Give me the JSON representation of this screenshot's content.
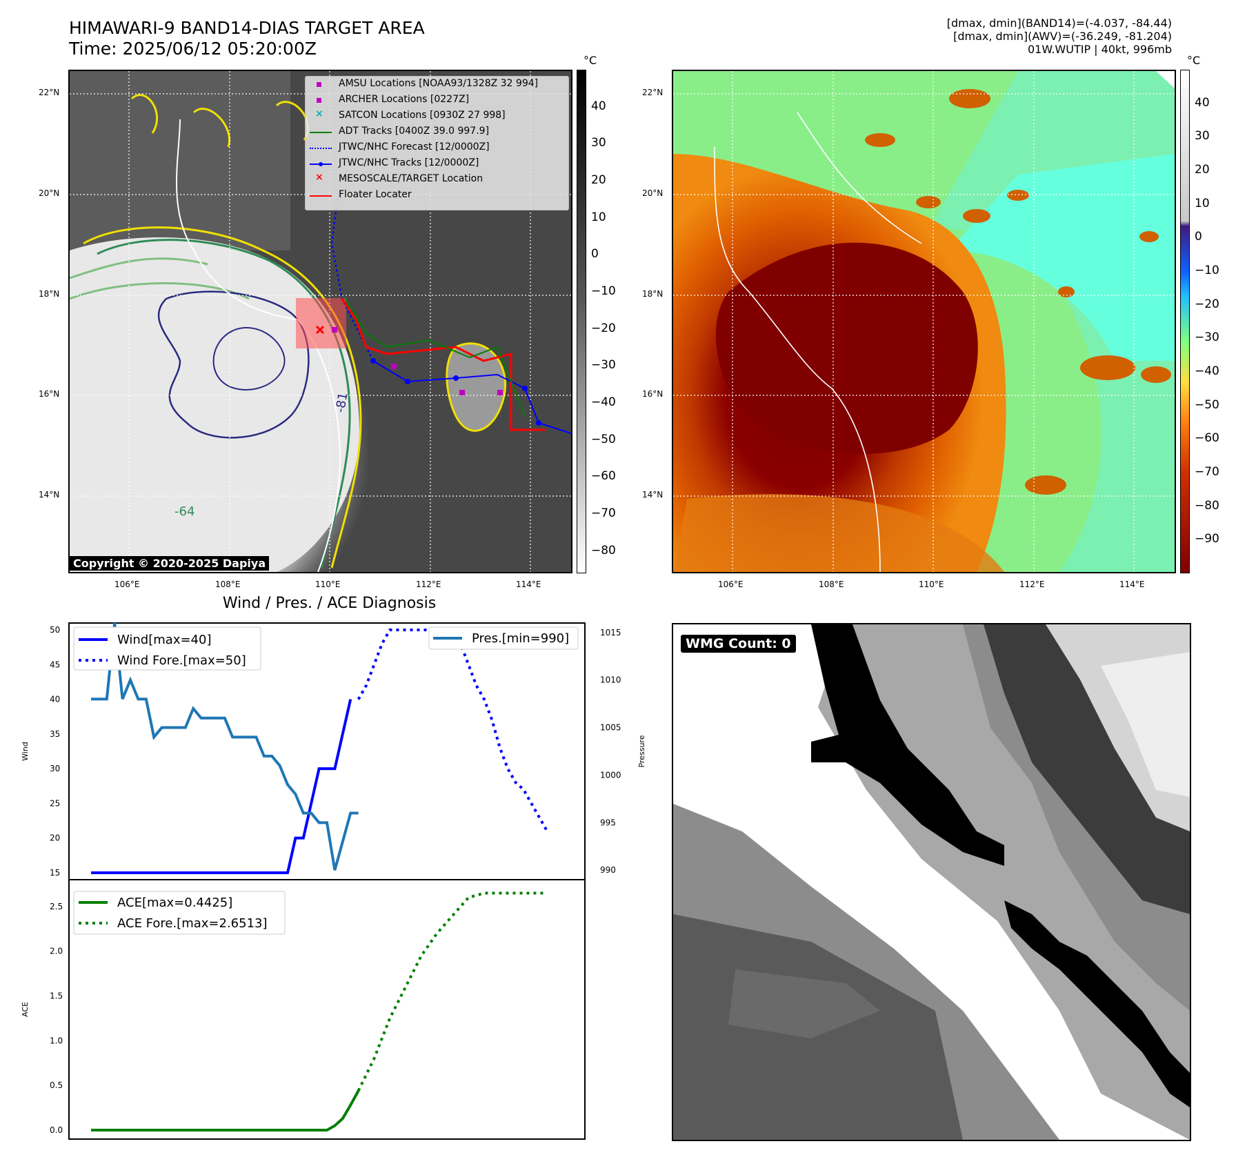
{
  "header": {
    "title_line1": "HIMAWARI-9 BAND14-DIAS TARGET AREA",
    "title_line2": "Time: 2025/06/12 05:20:00Z",
    "info_line1": "[dmax, dmin](BAND14)=(-4.037, -84.44)",
    "info_line2": "[dmax, dmin](AWV)=(-36.249, -81.204)",
    "info_line3": "01W.WUTIP | 40kt, 996mb"
  },
  "map_left": {
    "lat_labels": [
      "22°N",
      "20°N",
      "18°N",
      "16°N",
      "14°N"
    ],
    "lon_labels": [
      "106°E",
      "108°E",
      "110°E",
      "112°E",
      "114°E"
    ],
    "copyright": "Copyright © 2020-2025 Dapiya",
    "contour_labels": [
      "-81",
      "-64"
    ],
    "legend": [
      {
        "label": "AMSU Locations [NOAA93/1328Z 32 994]",
        "marker": "square",
        "color": "#c000c0"
      },
      {
        "label": "ARCHER Locations [0227Z]",
        "marker": "square",
        "color": "#c000c0"
      },
      {
        "label": "SATCON Locations [0930Z 27 998]",
        "marker": "x",
        "color": "#00b0b0"
      },
      {
        "label": "ADT Tracks [0400Z 39.0 997.9]",
        "marker": "line",
        "color": "#008000"
      },
      {
        "label": "JTWC/NHC Forecast [12/0000Z]",
        "marker": "dotted",
        "color": "#0000ff"
      },
      {
        "label": "JTWC/NHC Tracks [12/0000Z]",
        "marker": "line-dot",
        "color": "#0000ff"
      },
      {
        "label": "MESOSCALE/TARGET Location",
        "marker": "x",
        "color": "#ff0000"
      },
      {
        "label": "Floater Locater",
        "marker": "line",
        "color": "#ff0000"
      }
    ],
    "colorbar_unit": "°C",
    "colorbar_ticks": [
      "40",
      "30",
      "20",
      "10",
      "0",
      "−10",
      "−20",
      "−30",
      "−40",
      "−50",
      "−60",
      "−70",
      "−80"
    ]
  },
  "map_right": {
    "lat_labels": [
      "22°N",
      "20°N",
      "18°N",
      "16°N",
      "14°N"
    ],
    "lon_labels": [
      "106°E",
      "108°E",
      "110°E",
      "112°E",
      "114°E"
    ],
    "colorbar_unit": "°C",
    "colorbar_ticks": [
      "40",
      "30",
      "20",
      "10",
      "0",
      "−10",
      "−20",
      "−30",
      "−40",
      "−50",
      "−60",
      "−70",
      "−80",
      "−90"
    ]
  },
  "wmg": {
    "label": "WMG Count: 0"
  },
  "chart_data": [
    {
      "type": "line",
      "title": "Wind / Pres. / ACE Diagnosis",
      "ylabel": "Wind",
      "y2label": "Pressure",
      "ylim": [
        14,
        51
      ],
      "y2lim": [
        989,
        1016
      ],
      "yticks": [
        "50",
        "45",
        "40",
        "35",
        "30",
        "25",
        "20",
        "15"
      ],
      "y2ticks": [
        "1015",
        "1010",
        "1005",
        "1000",
        "995",
        "990"
      ],
      "series": [
        {
          "name": "Wind[max=40]",
          "color": "#0000ff",
          "style": "solid",
          "axis": "left",
          "x": [
            0,
            1,
            2,
            3,
            4,
            5,
            6,
            7,
            8,
            9,
            10,
            11,
            12,
            13,
            14,
            15,
            16,
            17,
            18,
            19,
            20,
            21,
            22,
            23,
            24,
            25,
            26,
            27,
            28,
            29,
            30,
            31,
            32,
            33
          ],
          "y": [
            15,
            15,
            15,
            15,
            15,
            15,
            15,
            15,
            15,
            15,
            15,
            15,
            15,
            15,
            15,
            15,
            15,
            15,
            15,
            15,
            15,
            15,
            15,
            15,
            15,
            15,
            20,
            20,
            25,
            30,
            30,
            30,
            35,
            40
          ]
        },
        {
          "name": "Wind Fore.[max=50]",
          "color": "#0000ff",
          "style": "dotted",
          "axis": "left",
          "x": [
            34,
            35,
            36,
            37,
            38,
            39,
            40,
            41,
            42,
            43,
            44,
            45,
            46,
            47,
            48,
            49,
            50,
            51,
            52,
            53,
            54,
            55,
            56,
            57,
            58
          ],
          "y": [
            40,
            42,
            45,
            48,
            50,
            50,
            50,
            50,
            50,
            50,
            50,
            50,
            50,
            48,
            45,
            42,
            40,
            37,
            33,
            30,
            28,
            27,
            25,
            23,
            21
          ]
        },
        {
          "name": "Pres.[min=990]",
          "color": "#1f77b4",
          "style": "solid",
          "axis": "right",
          "x": [
            0,
            1,
            2,
            3,
            4,
            5,
            6,
            7,
            8,
            9,
            10,
            11,
            12,
            13,
            14,
            15,
            16,
            17,
            18,
            19,
            20,
            21,
            22,
            23,
            24,
            25,
            26,
            27,
            28,
            29,
            30,
            31,
            32,
            33,
            34
          ],
          "y": [
            1008,
            1008,
            1008,
            1016,
            1008,
            1010,
            1008,
            1008,
            1004,
            1005,
            1005,
            1005,
            1005,
            1007,
            1006,
            1006,
            1006,
            1006,
            1004,
            1004,
            1004,
            1004,
            1002,
            1002,
            1001,
            999,
            998,
            996,
            996,
            995,
            995,
            990,
            993,
            996,
            996
          ]
        }
      ]
    },
    {
      "type": "line",
      "ylabel": "ACE",
      "ylim": [
        -0.1,
        2.8
      ],
      "yticks": [
        "2.5",
        "2.0",
        "1.5",
        "1.0",
        "0.5",
        "0.0"
      ],
      "series": [
        {
          "name": "ACE[max=0.4425]",
          "color": "#008000",
          "style": "solid",
          "x": [
            0,
            5,
            10,
            15,
            20,
            25,
            28,
            30,
            31,
            32,
            33,
            34
          ],
          "y": [
            0,
            0,
            0,
            0,
            0,
            0,
            0,
            0,
            0.05,
            0.13,
            0.28,
            0.44
          ]
        },
        {
          "name": "ACE Fore.[max=2.6513]",
          "color": "#008000",
          "style": "dotted",
          "x": [
            34,
            36,
            38,
            40,
            42,
            44,
            46,
            48,
            50,
            52,
            54,
            56,
            58
          ],
          "y": [
            0.44,
            0.8,
            1.25,
            1.6,
            1.95,
            2.2,
            2.4,
            2.6,
            2.65,
            2.65,
            2.65,
            2.65,
            2.65
          ]
        }
      ]
    }
  ]
}
